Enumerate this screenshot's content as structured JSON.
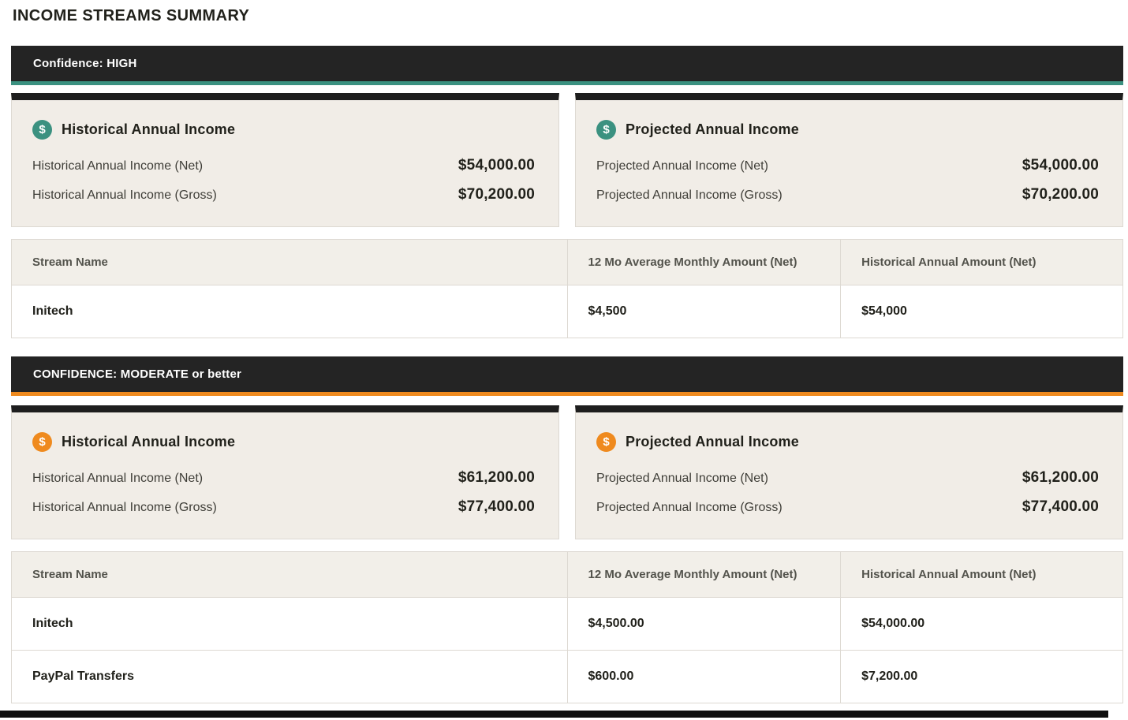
{
  "page_title": "INCOME STREAMS SUMMARY",
  "icon_glyph": "$",
  "colors": {
    "accent_teal": "#3B9180",
    "accent_orange": "#EF8A1E",
    "bar_dark": "#242424",
    "strip_dark": "#1E1E1E",
    "card_bg": "#F1EDE7",
    "table_header_bg": "#F2EFE9",
    "border": "#DDD9D2",
    "text_dark": "#21211B",
    "text_label": "#3F3E38",
    "text_header_cell": "#53534C"
  },
  "sections": [
    {
      "confidence_label": "Confidence: HIGH",
      "cards": [
        {
          "title": "Historical Annual Income",
          "rows": [
            {
              "label": "Historical Annual Income (Net)",
              "value": "$54,000.00"
            },
            {
              "label": "Historical Annual Income (Gross)",
              "value": "$70,200.00"
            }
          ]
        },
        {
          "title": "Projected Annual Income",
          "rows": [
            {
              "label": "Projected Annual Income (Net)",
              "value": "$54,000.00"
            },
            {
              "label": "Projected Annual Income (Gross)",
              "value": "$70,200.00"
            }
          ]
        }
      ],
      "table": {
        "headers": [
          "Stream Name",
          "12 Mo Average Monthly Amount (Net)",
          "Historical Annual Amount (Net)"
        ],
        "rows": [
          [
            "Initech",
            "$4,500",
            "$54,000"
          ]
        ]
      }
    },
    {
      "confidence_label": "CONFIDENCE: MODERATE or better",
      "cards": [
        {
          "title": "Historical Annual Income",
          "rows": [
            {
              "label": "Historical Annual Income (Net)",
              "value": "$61,200.00"
            },
            {
              "label": "Historical Annual Income (Gross)",
              "value": "$77,400.00"
            }
          ]
        },
        {
          "title": "Projected Annual Income",
          "rows": [
            {
              "label": "Projected Annual Income (Net)",
              "value": "$61,200.00"
            },
            {
              "label": "Projected Annual Income (Gross)",
              "value": "$77,400.00"
            }
          ]
        }
      ],
      "table": {
        "headers": [
          "Stream Name",
          "12 Mo Average Monthly Amount (Net)",
          "Historical Annual Amount (Net)"
        ],
        "rows": [
          [
            "Initech",
            "$4,500.00",
            "$54,000.00"
          ],
          [
            "PayPal Transfers",
            "$600.00",
            "$7,200.00"
          ]
        ]
      }
    }
  ]
}
